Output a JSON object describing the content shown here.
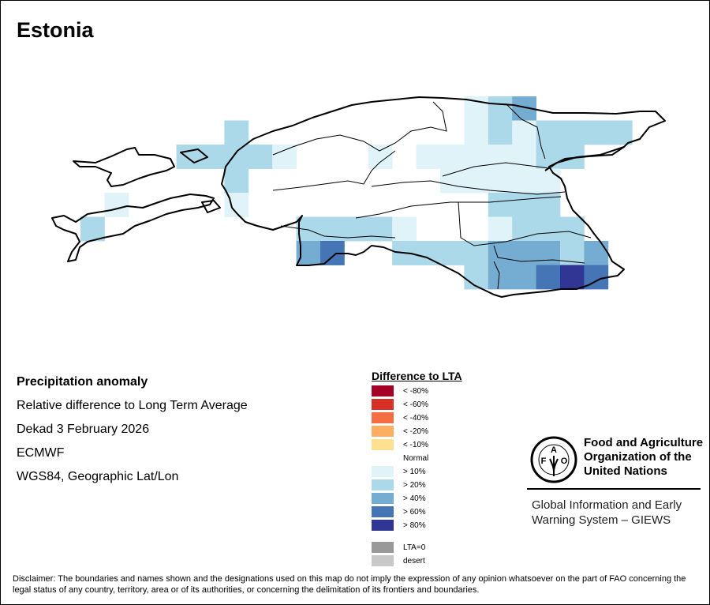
{
  "title": "Estonia",
  "info": {
    "heading": "Precipitation anomaly",
    "line1": "Relative difference to Long Term Average",
    "line2": "Dekad 3 February 2026",
    "line3": "ECMWF",
    "line4": "WGS84, Geographic Lat/Lon"
  },
  "legend": {
    "title": "Difference to LTA",
    "items": [
      {
        "label": "< -80%",
        "color": "#a50026"
      },
      {
        "label": "< -60%",
        "color": "#d73027"
      },
      {
        "label": "< -40%",
        "color": "#f46d43"
      },
      {
        "label": "< -20%",
        "color": "#fdae61"
      },
      {
        "label": "< -10%",
        "color": "#fee090"
      },
      {
        "label": "Normal",
        "color": "#ffffff"
      },
      {
        "label": "> 10%",
        "color": "#e0f3f8"
      },
      {
        "label": "> 20%",
        "color": "#abd9e9"
      },
      {
        "label": "> 40%",
        "color": "#74add1"
      },
      {
        "label": "> 60%",
        "color": "#4575b4"
      },
      {
        "label": "> 80%",
        "color": "#313695"
      }
    ],
    "extra": [
      {
        "label": "LTA=0",
        "color": "#999999"
      },
      {
        "label": "desert",
        "color": "#c8c8c8"
      }
    ]
  },
  "fao": {
    "line1": "Food and Agriculture",
    "line2": "Organization of the",
    "line3": "United Nations",
    "logo_text": "FAO FIAT PANIS"
  },
  "giews": {
    "line1": "Global Information and Early",
    "line2": "Warning System – GIEWS"
  },
  "disclaimer": "Disclaimer: The boundaries and names shown and the designations used on this map do not imply the expression of any opinion whatsoever on the part of FAO concerning the legal status of any country, territory, area or of its authorities, or concerning the delimitation of its frontiers and boundaries.",
  "map": {
    "class_colors": {
      "1": "#e0f3f8",
      "2": "#abd9e9",
      "3": "#74add1",
      "4": "#4575b4",
      "5": "#313695"
    },
    "cells": [
      [
        0,
        16,
        1
      ],
      [
        0,
        17,
        2
      ],
      [
        0,
        18,
        3
      ],
      [
        1,
        6,
        2
      ],
      [
        1,
        16,
        1
      ],
      [
        1,
        17,
        2
      ],
      [
        1,
        18,
        1
      ],
      [
        1,
        19,
        2
      ],
      [
        1,
        20,
        2
      ],
      [
        1,
        21,
        2
      ],
      [
        1,
        22,
        2
      ],
      [
        2,
        4,
        2
      ],
      [
        2,
        5,
        2
      ],
      [
        2,
        6,
        2
      ],
      [
        2,
        7,
        2
      ],
      [
        2,
        8,
        1
      ],
      [
        2,
        12,
        1
      ],
      [
        2,
        14,
        1
      ],
      [
        2,
        15,
        1
      ],
      [
        2,
        16,
        1
      ],
      [
        2,
        17,
        1
      ],
      [
        2,
        18,
        1
      ],
      [
        2,
        19,
        2
      ],
      [
        2,
        20,
        2
      ],
      [
        3,
        6,
        2
      ],
      [
        3,
        15,
        1
      ],
      [
        3,
        16,
        1
      ],
      [
        3,
        17,
        1
      ],
      [
        3,
        18,
        1
      ],
      [
        3,
        19,
        1
      ],
      [
        4,
        1,
        1
      ],
      [
        4,
        6,
        1
      ],
      [
        4,
        17,
        2
      ],
      [
        4,
        18,
        2
      ],
      [
        4,
        19,
        2
      ],
      [
        5,
        0,
        2
      ],
      [
        5,
        9,
        2
      ],
      [
        5,
        10,
        2
      ],
      [
        5,
        11,
        2
      ],
      [
        5,
        12,
        2
      ],
      [
        5,
        13,
        1
      ],
      [
        5,
        17,
        1
      ],
      [
        5,
        18,
        2
      ],
      [
        5,
        19,
        2
      ],
      [
        5,
        20,
        2
      ],
      [
        6,
        9,
        3
      ],
      [
        6,
        10,
        4
      ],
      [
        6,
        13,
        2
      ],
      [
        6,
        14,
        2
      ],
      [
        6,
        15,
        2
      ],
      [
        6,
        16,
        2
      ],
      [
        6,
        17,
        3
      ],
      [
        6,
        18,
        3
      ],
      [
        6,
        19,
        3
      ],
      [
        6,
        20,
        2
      ],
      [
        6,
        21,
        3
      ],
      [
        7,
        16,
        2
      ],
      [
        7,
        17,
        3
      ],
      [
        7,
        18,
        3
      ],
      [
        7,
        19,
        4
      ],
      [
        7,
        20,
        5
      ],
      [
        7,
        21,
        4
      ]
    ]
  }
}
